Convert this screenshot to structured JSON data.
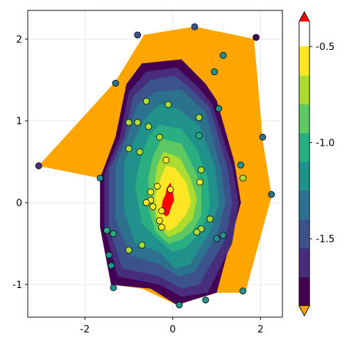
{
  "chart_data": {
    "type": "contour",
    "xlim": [
      -3.3,
      2.5
    ],
    "ylim": [
      -1.4,
      2.35
    ],
    "x_ticks": [
      -2,
      0,
      2
    ],
    "x_tick_labels": [
      "-2",
      "0",
      "2"
    ],
    "y_ticks": [
      -1,
      0,
      1,
      2
    ],
    "y_tick_labels": [
      "-1",
      "0",
      "1",
      "2"
    ],
    "grid": true,
    "colormap": "viridis",
    "colorbar": {
      "range": [
        -1.85,
        -0.37
      ],
      "levels": [
        -1.85,
        -1.7,
        -1.55,
        -1.4,
        -1.25,
        -1.1,
        -0.95,
        -0.8,
        -0.65,
        -0.5,
        -0.37
      ],
      "ticks": [
        -1.5,
        -1.0,
        -0.5
      ],
      "tick_labels": [
        "-1.5",
        "-1.0",
        "-0.5"
      ],
      "colors": [
        "#440154",
        "#472d7b",
        "#3b528b",
        "#2c728e",
        "#21918c",
        "#28ae80",
        "#5ec962",
        "#addc30",
        "#fde725"
      ],
      "highclip_color": "#ff0000",
      "lowclip_color": "#ffa500"
    },
    "contour_regions": [
      {
        "level": "below",
        "color": "#ffa500",
        "points": [
          [
            -3.05,
            0.45
          ],
          [
            -1.3,
            1.48
          ],
          [
            -0.65,
            2.05
          ],
          [
            0.5,
            2.15
          ],
          [
            1.85,
            2.0
          ],
          [
            2.05,
            0.75
          ],
          [
            2.25,
            0.08
          ],
          [
            1.65,
            -1.1
          ],
          [
            1.0,
            -1.1
          ],
          [
            0.5,
            -1.18
          ],
          [
            0.1,
            -1.25
          ],
          [
            -0.7,
            -1.05
          ],
          [
            -1.4,
            -1.0
          ],
          [
            -1.65,
            0.3
          ]
        ]
      },
      {
        "level": 1,
        "color": "#440154",
        "points": [
          [
            -0.7,
            1.7
          ],
          [
            0.2,
            1.75
          ],
          [
            0.75,
            1.45
          ],
          [
            1.0,
            1.25
          ],
          [
            1.4,
            0.5
          ],
          [
            1.55,
            0.0
          ],
          [
            1.0,
            -1.1
          ],
          [
            0.5,
            -1.18
          ],
          [
            0.1,
            -1.25
          ],
          [
            -0.5,
            -1.05
          ],
          [
            -1.4,
            -1.0
          ],
          [
            -1.65,
            -0.3
          ],
          [
            -1.65,
            0.3
          ],
          [
            -1.3,
            0.8
          ],
          [
            -1.05,
            1.45
          ]
        ]
      },
      {
        "level": 2,
        "color": "#472d7b",
        "points": [
          [
            -0.6,
            1.6
          ],
          [
            0.1,
            1.65
          ],
          [
            0.6,
            1.4
          ],
          [
            0.9,
            1.2
          ],
          [
            1.35,
            0.45
          ],
          [
            1.5,
            0.0
          ],
          [
            1.35,
            -0.5
          ],
          [
            0.8,
            -1.1
          ],
          [
            0.2,
            -1.15
          ],
          [
            -0.3,
            -1.0
          ],
          [
            -1.25,
            -0.9
          ],
          [
            -1.55,
            -0.3
          ],
          [
            -1.55,
            0.35
          ],
          [
            -1.2,
            0.8
          ],
          [
            -1.0,
            1.35
          ]
        ]
      },
      {
        "level": 3,
        "color": "#3b528b",
        "points": [
          [
            -0.5,
            1.5
          ],
          [
            0.05,
            1.55
          ],
          [
            0.5,
            1.35
          ],
          [
            0.85,
            1.15
          ],
          [
            1.25,
            0.4
          ],
          [
            1.35,
            0.0
          ],
          [
            1.2,
            -0.45
          ],
          [
            0.6,
            -1.0
          ],
          [
            0.2,
            -1.05
          ],
          [
            -0.3,
            -0.9
          ],
          [
            -1.15,
            -0.8
          ],
          [
            -1.45,
            -0.3
          ],
          [
            -1.45,
            0.4
          ],
          [
            -1.1,
            0.8
          ],
          [
            -0.9,
            1.3
          ]
        ]
      },
      {
        "level": 4,
        "color": "#2c728e",
        "points": [
          [
            -0.4,
            1.35
          ],
          [
            0.2,
            1.38
          ],
          [
            0.75,
            1.1
          ],
          [
            1.1,
            0.4
          ],
          [
            1.2,
            0.0
          ],
          [
            1.0,
            -0.4
          ],
          [
            0.5,
            -0.85
          ],
          [
            0.15,
            -0.9
          ],
          [
            -0.3,
            -0.75
          ],
          [
            -0.95,
            -0.65
          ],
          [
            -1.3,
            -0.2
          ],
          [
            -1.3,
            0.45
          ],
          [
            -1.0,
            0.85
          ],
          [
            -0.8,
            1.2
          ]
        ]
      },
      {
        "level": 5,
        "color": "#21918c",
        "points": [
          [
            -0.3,
            1.2
          ],
          [
            0.1,
            1.15
          ],
          [
            0.6,
            0.95
          ],
          [
            0.95,
            0.45
          ],
          [
            1.05,
            0.0
          ],
          [
            0.85,
            -0.35
          ],
          [
            0.4,
            -0.75
          ],
          [
            0.05,
            -0.8
          ],
          [
            -0.3,
            -0.6
          ],
          [
            -0.85,
            -0.5
          ],
          [
            -1.1,
            -0.1
          ],
          [
            -1.1,
            0.5
          ],
          [
            -0.8,
            0.85
          ],
          [
            -0.6,
            1.05
          ]
        ]
      },
      {
        "level": 6,
        "color": "#28ae80",
        "points": [
          [
            -0.3,
            0.95
          ],
          [
            0.2,
            0.9
          ],
          [
            0.55,
            0.65
          ],
          [
            0.8,
            0.3
          ],
          [
            0.85,
            -0.05
          ],
          [
            0.65,
            -0.35
          ],
          [
            0.3,
            -0.55
          ],
          [
            0.0,
            -0.6
          ],
          [
            -0.35,
            -0.45
          ],
          [
            -0.7,
            -0.25
          ],
          [
            -0.85,
            0.2
          ],
          [
            -0.7,
            0.6
          ],
          [
            -0.55,
            0.8
          ]
        ]
      },
      {
        "level": 7,
        "color": "#5ec962",
        "points": [
          [
            -0.25,
            0.78
          ],
          [
            0.2,
            0.72
          ],
          [
            0.45,
            0.45
          ],
          [
            0.65,
            0.2
          ],
          [
            0.65,
            -0.15
          ],
          [
            0.45,
            -0.35
          ],
          [
            0.2,
            -0.45
          ],
          [
            -0.1,
            -0.5
          ],
          [
            -0.4,
            -0.35
          ],
          [
            -0.55,
            -0.05
          ],
          [
            -0.55,
            0.3
          ],
          [
            -0.45,
            0.55
          ]
        ]
      },
      {
        "level": 8,
        "color": "#addc30",
        "points": [
          [
            -0.2,
            0.62
          ],
          [
            0.15,
            0.55
          ],
          [
            0.4,
            0.3
          ],
          [
            0.55,
            0.05
          ],
          [
            0.45,
            -0.2
          ],
          [
            0.2,
            -0.35
          ],
          [
            -0.1,
            -0.42
          ],
          [
            -0.35,
            -0.25
          ],
          [
            -0.45,
            0.0
          ],
          [
            -0.4,
            0.25
          ],
          [
            -0.35,
            0.45
          ]
        ]
      },
      {
        "level": 9,
        "color": "#fde725",
        "points": [
          [
            -0.15,
            0.45
          ],
          [
            0.05,
            0.42
          ],
          [
            0.3,
            0.25
          ],
          [
            0.42,
            0.0
          ],
          [
            0.3,
            -0.15
          ],
          [
            0.05,
            -0.3
          ],
          [
            -0.1,
            -0.35
          ],
          [
            -0.32,
            -0.2
          ],
          [
            -0.4,
            0.05
          ],
          [
            -0.3,
            0.25
          ]
        ]
      },
      {
        "level": "above",
        "color": "#ff0000",
        "points": [
          [
            -0.13,
            0.18
          ],
          [
            -0.05,
            0.24
          ],
          [
            0.0,
            0.12
          ],
          [
            0.03,
            0.03
          ],
          [
            -0.05,
            -0.07
          ],
          [
            -0.08,
            -0.14
          ],
          [
            -0.15,
            -0.17
          ],
          [
            -0.22,
            -0.13
          ],
          [
            -0.25,
            -0.06
          ],
          [
            -0.22,
            0.03
          ],
          [
            -0.16,
            0.1
          ]
        ]
      }
    ],
    "points": [
      {
        "x": -0.8,
        "y": 2.05,
        "v": -1.55
      },
      {
        "x": 0.5,
        "y": 2.15,
        "v": -1.55
      },
      {
        "x": 1.9,
        "y": 2.02,
        "v": -1.8
      },
      {
        "x": 1.15,
        "y": 1.8,
        "v": -1.2
      },
      {
        "x": 0.95,
        "y": 1.6,
        "v": -1.2
      },
      {
        "x": -1.3,
        "y": 1.46,
        "v": -1.4
      },
      {
        "x": -0.6,
        "y": 1.24,
        "v": -0.8
      },
      {
        "x": -0.1,
        "y": 1.2,
        "v": -0.8
      },
      {
        "x": 1.05,
        "y": 1.15,
        "v": -1.2
      },
      {
        "x": -1.0,
        "y": 0.98,
        "v": -0.8
      },
      {
        "x": -0.8,
        "y": 0.98,
        "v": -0.8
      },
      {
        "x": -0.55,
        "y": 0.93,
        "v": -0.8
      },
      {
        "x": 0.6,
        "y": 1.04,
        "v": -0.8
      },
      {
        "x": 2.05,
        "y": 0.8,
        "v": -1.4
      },
      {
        "x": -0.3,
        "y": 0.8,
        "v": -0.8
      },
      {
        "x": 0.6,
        "y": 0.82,
        "v": -1.0
      },
      {
        "x": -1.0,
        "y": 0.66,
        "v": -0.8
      },
      {
        "x": -0.75,
        "y": 0.62,
        "v": -0.8
      },
      {
        "x": -0.15,
        "y": 0.52,
        "v": -0.5
      },
      {
        "x": 1.55,
        "y": 0.46,
        "v": -1.2
      },
      {
        "x": -3.05,
        "y": 0.45,
        "v": -1.7
      },
      {
        "x": 0.65,
        "y": 0.4,
        "v": -0.8
      },
      {
        "x": -1.65,
        "y": 0.3,
        "v": -1.2
      },
      {
        "x": 1.6,
        "y": 0.3,
        "v": -0.8
      },
      {
        "x": 0.62,
        "y": 0.25,
        "v": -0.65
      },
      {
        "x": -0.35,
        "y": 0.2,
        "v": -0.5
      },
      {
        "x": -0.05,
        "y": 0.16,
        "v": -0.5
      },
      {
        "x": -0.5,
        "y": 0.13,
        "v": -0.5
      },
      {
        "x": 2.25,
        "y": 0.1,
        "v": -1.4
      },
      {
        "x": -0.5,
        "y": 0.03,
        "v": -0.5
      },
      {
        "x": -0.6,
        "y": 0.0,
        "v": -0.5
      },
      {
        "x": -0.45,
        "y": -0.05,
        "v": -0.5
      },
      {
        "x": -0.25,
        "y": -0.1,
        "v": -0.5
      },
      {
        "x": 0.85,
        "y": -0.2,
        "v": -0.8
      },
      {
        "x": -0.3,
        "y": -0.22,
        "v": -0.5
      },
      {
        "x": -0.25,
        "y": -0.3,
        "v": -0.5
      },
      {
        "x": 0.65,
        "y": -0.32,
        "v": -0.8
      },
      {
        "x": 0.55,
        "y": -0.36,
        "v": -0.8
      },
      {
        "x": -1.5,
        "y": -0.34,
        "v": -1.0
      },
      {
        "x": -1.35,
        "y": -0.38,
        "v": -1.0
      },
      {
        "x": 1.15,
        "y": -0.4,
        "v": -1.2
      },
      {
        "x": 1.0,
        "y": -0.44,
        "v": -1.2
      },
      {
        "x": -0.7,
        "y": -0.52,
        "v": -0.8
      },
      {
        "x": -1.0,
        "y": -0.58,
        "v": -0.8
      },
      {
        "x": -1.45,
        "y": -0.64,
        "v": -1.2
      },
      {
        "x": -1.4,
        "y": -0.77,
        "v": -1.2
      },
      {
        "x": -1.35,
        "y": -1.04,
        "v": -1.2
      },
      {
        "x": 1.6,
        "y": -1.08,
        "v": -1.2
      },
      {
        "x": 0.75,
        "y": -1.19,
        "v": -1.2
      },
      {
        "x": 0.15,
        "y": -1.25,
        "v": -1.2
      }
    ]
  }
}
